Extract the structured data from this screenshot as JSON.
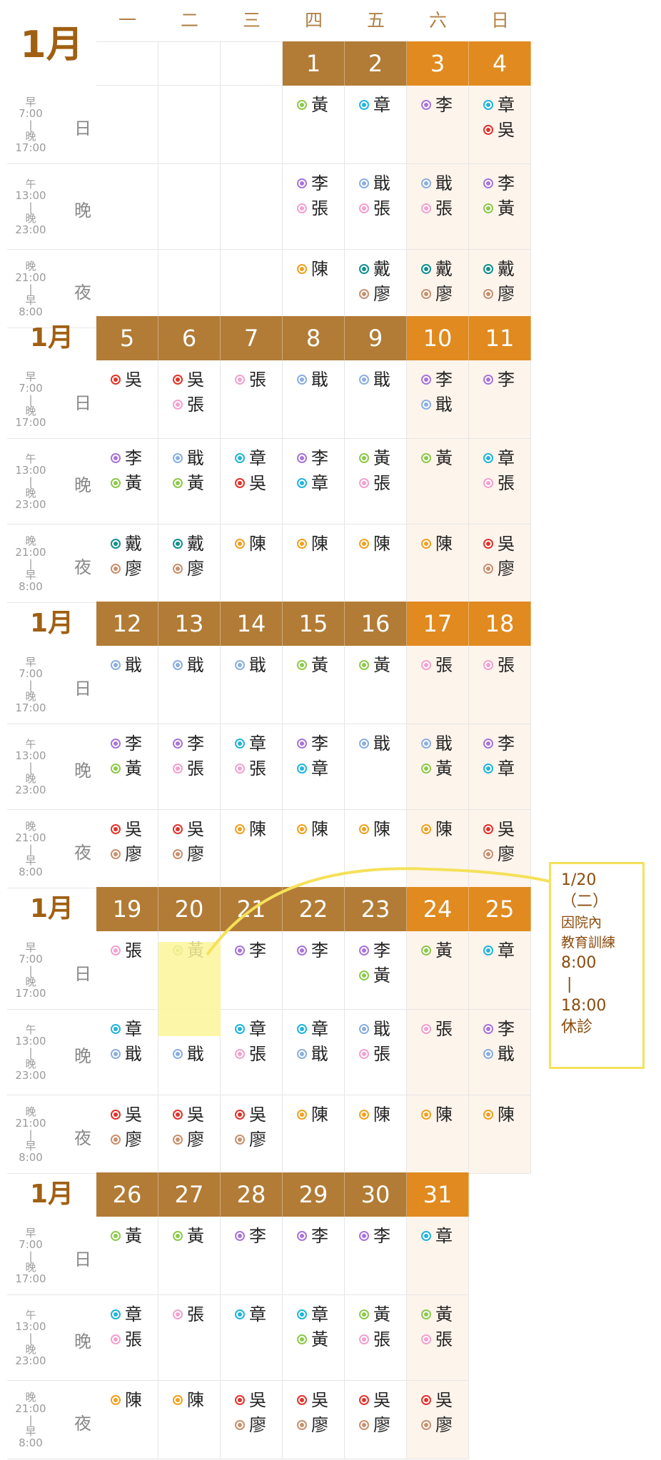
{
  "weekdays": [
    "一",
    "二",
    "三",
    "四",
    "五",
    "六",
    "日"
  ],
  "periods": [
    {
      "name": "日",
      "time": [
        "早",
        "7:00",
        "|",
        "晚",
        "17:00"
      ]
    },
    {
      "name": "晚",
      "time": [
        "午",
        "13:00",
        "|",
        "晚",
        "23:00"
      ]
    },
    {
      "name": "夜",
      "time": [
        "晚",
        "21:00",
        "|",
        "早",
        "8:00"
      ]
    }
  ],
  "colors": {
    "李": "#a774d8",
    "章": "#21b4da",
    "黃": "#8cc94a",
    "戢": "#8aaee0",
    "張": "#f2a1cf",
    "吳": "#e0332a",
    "陳": "#f0a01e",
    "戴": "#118f8f",
    "廖": "#c8906e"
  },
  "weeks": [
    {
      "month": "1月",
      "big": true,
      "dates": [
        "",
        "",
        "",
        "1",
        "2",
        "3",
        "4"
      ],
      "shifts": [
        [
          [],
          [],
          [],
          [
            "黃"
          ],
          [
            "章"
          ],
          [
            "李"
          ],
          [
            "章",
            "吳"
          ]
        ],
        [
          [],
          [],
          [],
          [
            "李",
            "張"
          ],
          [
            "戢",
            "張"
          ],
          [
            "戢",
            "張"
          ],
          [
            "李",
            "黃"
          ]
        ],
        [
          [],
          [],
          [],
          [
            "陳"
          ],
          [
            "戴",
            "廖"
          ],
          [
            "戴",
            "廖"
          ],
          [
            "戴",
            "廖"
          ]
        ]
      ]
    },
    {
      "month": "1月",
      "dates": [
        "5",
        "6",
        "7",
        "8",
        "9",
        "10",
        "11"
      ],
      "shifts": [
        [
          [
            "吳"
          ],
          [
            "吳",
            "張"
          ],
          [
            "張"
          ],
          [
            "戢"
          ],
          [
            "戢"
          ],
          [
            "李",
            "戢"
          ],
          [
            "李"
          ]
        ],
        [
          [
            "李",
            "黃"
          ],
          [
            "戢",
            "黃"
          ],
          [
            "章",
            "吳"
          ],
          [
            "李",
            "章"
          ],
          [
            "黃",
            "張"
          ],
          [
            "黃"
          ],
          [
            "章",
            "張"
          ]
        ],
        [
          [
            "戴",
            "廖"
          ],
          [
            "戴",
            "廖"
          ],
          [
            "陳"
          ],
          [
            "陳"
          ],
          [
            "陳"
          ],
          [
            "陳"
          ],
          [
            "吳",
            "廖"
          ]
        ]
      ]
    },
    {
      "month": "1月",
      "dates": [
        "12",
        "13",
        "14",
        "15",
        "16",
        "17",
        "18"
      ],
      "shifts": [
        [
          [
            "戢"
          ],
          [
            "戢"
          ],
          [
            "戢"
          ],
          [
            "黃"
          ],
          [
            "黃"
          ],
          [
            "張"
          ],
          [
            "張"
          ]
        ],
        [
          [
            "李",
            "黃"
          ],
          [
            "李",
            "張"
          ],
          [
            "章",
            "張"
          ],
          [
            "李",
            "章"
          ],
          [
            "戢"
          ],
          [
            "戢",
            "黃"
          ],
          [
            "李",
            "章"
          ]
        ],
        [
          [
            "吳",
            "廖"
          ],
          [
            "吳",
            "廖"
          ],
          [
            "陳"
          ],
          [
            "陳"
          ],
          [
            "陳"
          ],
          [
            "陳"
          ],
          [
            "吳",
            "廖"
          ]
        ]
      ]
    },
    {
      "month": "1月",
      "dates": [
        "19",
        "20",
        "21",
        "22",
        "23",
        "24",
        "25"
      ],
      "shifts": [
        [
          [
            "張"
          ],
          [
            "黃"
          ],
          [
            "李"
          ],
          [
            "李"
          ],
          [
            "李",
            "黃"
          ],
          [
            "黃"
          ],
          [
            "章"
          ]
        ],
        [
          [
            "章",
            "戢"
          ],
          [
            "",
            "戢"
          ],
          [
            "章",
            "張"
          ],
          [
            "章",
            "戢"
          ],
          [
            "戢",
            "張"
          ],
          [
            "張"
          ],
          [
            "李",
            "戢"
          ]
        ],
        [
          [
            "吳",
            "廖"
          ],
          [
            "吳",
            "廖"
          ],
          [
            "吳",
            "廖"
          ],
          [
            "陳"
          ],
          [
            "陳"
          ],
          [
            "陳"
          ],
          [
            "陳"
          ]
        ]
      ]
    },
    {
      "month": "1月",
      "dates": [
        "26",
        "27",
        "28",
        "29",
        "30",
        "31",
        ""
      ],
      "shifts": [
        [
          [
            "黃"
          ],
          [
            "黃"
          ],
          [
            "李"
          ],
          [
            "李"
          ],
          [
            "李"
          ],
          [
            "章"
          ],
          []
        ],
        [
          [
            "章",
            "張"
          ],
          [
            "張"
          ],
          [
            "章"
          ],
          [
            "章",
            "黃"
          ],
          [
            "黃",
            "張"
          ],
          [
            "黃",
            "張"
          ],
          []
        ],
        [
          [
            "陳"
          ],
          [
            "陳"
          ],
          [
            "吳",
            "廖"
          ],
          [
            "吳",
            "廖"
          ],
          [
            "吳",
            "廖"
          ],
          [
            "吳",
            "廖"
          ],
          []
        ]
      ]
    }
  ],
  "note": {
    "lines": [
      "1/20",
      "（二）",
      "因院內",
      "教育訓練",
      "8:00",
      "|",
      "18:00",
      "休診"
    ]
  }
}
